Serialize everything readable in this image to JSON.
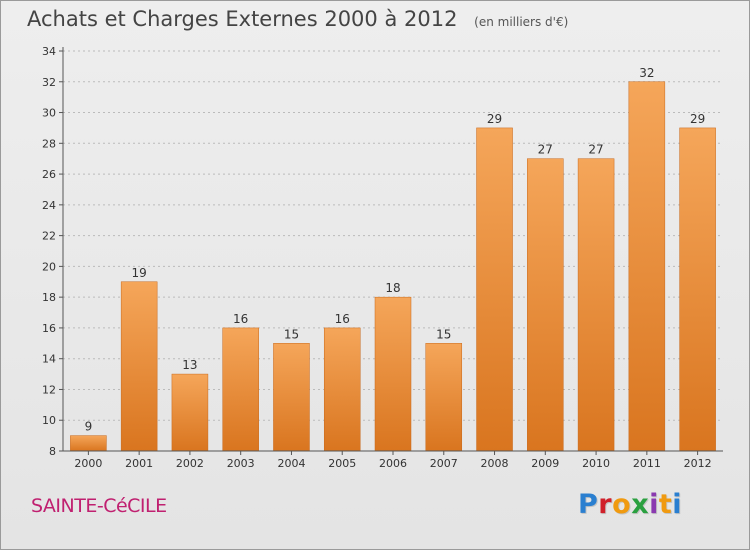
{
  "header": {
    "title": "Achats et Charges Externes 2000 à 2012",
    "subtitle": "(en milliers d'€)"
  },
  "footer": {
    "place_name": "SAINTE-CéCILE",
    "logo_text": "Proxiti"
  },
  "colors": {
    "bar_light": "#f5a65a",
    "bar_dark": "#d9751f",
    "grid": "#bbbbbb",
    "axis": "#555555",
    "place": "#c02070"
  },
  "chart_data": {
    "type": "bar",
    "title": "Achats et Charges Externes 2000 à 2012",
    "subtitle": "(en milliers d'€)",
    "xlabel": "",
    "ylabel": "",
    "categories": [
      "2000",
      "2001",
      "2002",
      "2003",
      "2004",
      "2005",
      "2006",
      "2007",
      "2008",
      "2009",
      "2010",
      "2011",
      "2012"
    ],
    "values": [
      9,
      19,
      13,
      16,
      15,
      16,
      18,
      15,
      29,
      27,
      27,
      32,
      29
    ],
    "ylim": [
      8,
      34
    ],
    "yticks": [
      8,
      10,
      12,
      14,
      16,
      18,
      20,
      22,
      24,
      26,
      28,
      30,
      32,
      34
    ],
    "grid": true,
    "legend": "none"
  }
}
